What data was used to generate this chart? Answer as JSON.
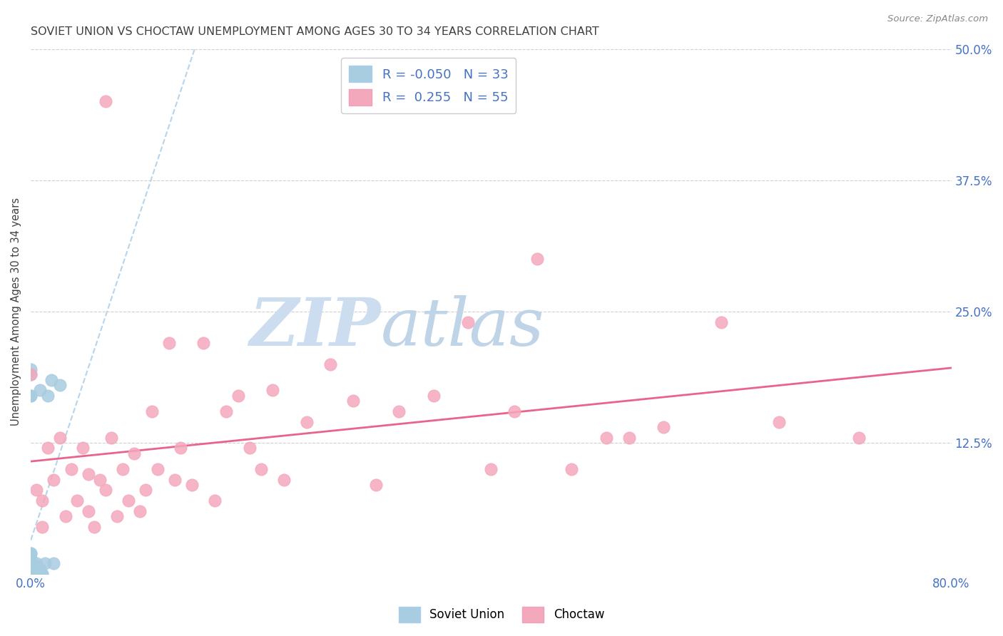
{
  "title": "SOVIET UNION VS CHOCTAW UNEMPLOYMENT AMONG AGES 30 TO 34 YEARS CORRELATION CHART",
  "source": "Source: ZipAtlas.com",
  "ylabel": "Unemployment Among Ages 30 to 34 years",
  "xlim": [
    0.0,
    0.8
  ],
  "ylim": [
    0.0,
    0.5
  ],
  "ytick_positions": [
    0.0,
    0.125,
    0.25,
    0.375,
    0.5
  ],
  "ytick_labels_right": [
    "",
    "12.5%",
    "25.0%",
    "37.5%",
    "50.0%"
  ],
  "soviet_color": "#a8cce0",
  "choctaw_color": "#f4a8bc",
  "soviet_line_color": "#b8d4e8",
  "choctaw_line_color": "#e8648c",
  "watermark_zip_color": "#d0e4f4",
  "watermark_atlas_color": "#c8d8e8",
  "background_color": "#ffffff",
  "grid_color": "#d0d0d0",
  "axis_color": "#4472c4",
  "legend_text_color": "#4472c4",
  "title_color": "#404040",
  "soviet_r": -0.05,
  "soviet_n": 33,
  "choctaw_r": 0.255,
  "choctaw_n": 55,
  "soviet_points_x": [
    0.0,
    0.0,
    0.0,
    0.0,
    0.0,
    0.0,
    0.0,
    0.0,
    0.0,
    0.0,
    0.0,
    0.0,
    0.0,
    0.0,
    0.0,
    0.0,
    0.0,
    0.0,
    0.0,
    0.005,
    0.005,
    0.005,
    0.005,
    0.008,
    0.008,
    0.008,
    0.01,
    0.01,
    0.012,
    0.015,
    0.018,
    0.02,
    0.025
  ],
  "soviet_points_y": [
    0.0,
    0.0,
    0.0,
    0.0,
    0.0,
    0.0,
    0.0,
    0.005,
    0.005,
    0.008,
    0.01,
    0.01,
    0.015,
    0.02,
    0.02,
    0.17,
    0.19,
    0.195,
    0.17,
    0.0,
    0.0,
    0.008,
    0.01,
    0.0,
    0.005,
    0.175,
    0.0,
    0.0,
    0.01,
    0.17,
    0.185,
    0.01,
    0.18
  ],
  "choctaw_points_x": [
    0.0,
    0.005,
    0.01,
    0.01,
    0.015,
    0.02,
    0.025,
    0.03,
    0.035,
    0.04,
    0.045,
    0.05,
    0.05,
    0.055,
    0.06,
    0.065,
    0.065,
    0.07,
    0.075,
    0.08,
    0.085,
    0.09,
    0.095,
    0.1,
    0.105,
    0.11,
    0.12,
    0.125,
    0.13,
    0.14,
    0.15,
    0.16,
    0.17,
    0.18,
    0.19,
    0.2,
    0.21,
    0.22,
    0.24,
    0.26,
    0.28,
    0.3,
    0.32,
    0.35,
    0.38,
    0.4,
    0.42,
    0.44,
    0.47,
    0.5,
    0.52,
    0.55,
    0.6,
    0.65,
    0.72
  ],
  "choctaw_points_y": [
    0.19,
    0.08,
    0.045,
    0.07,
    0.12,
    0.09,
    0.13,
    0.055,
    0.1,
    0.07,
    0.12,
    0.06,
    0.095,
    0.045,
    0.09,
    0.08,
    0.45,
    0.13,
    0.055,
    0.1,
    0.07,
    0.115,
    0.06,
    0.08,
    0.155,
    0.1,
    0.22,
    0.09,
    0.12,
    0.085,
    0.22,
    0.07,
    0.155,
    0.17,
    0.12,
    0.1,
    0.175,
    0.09,
    0.145,
    0.2,
    0.165,
    0.085,
    0.155,
    0.17,
    0.24,
    0.1,
    0.155,
    0.3,
    0.1,
    0.13,
    0.13,
    0.14,
    0.24,
    0.145,
    0.13
  ]
}
